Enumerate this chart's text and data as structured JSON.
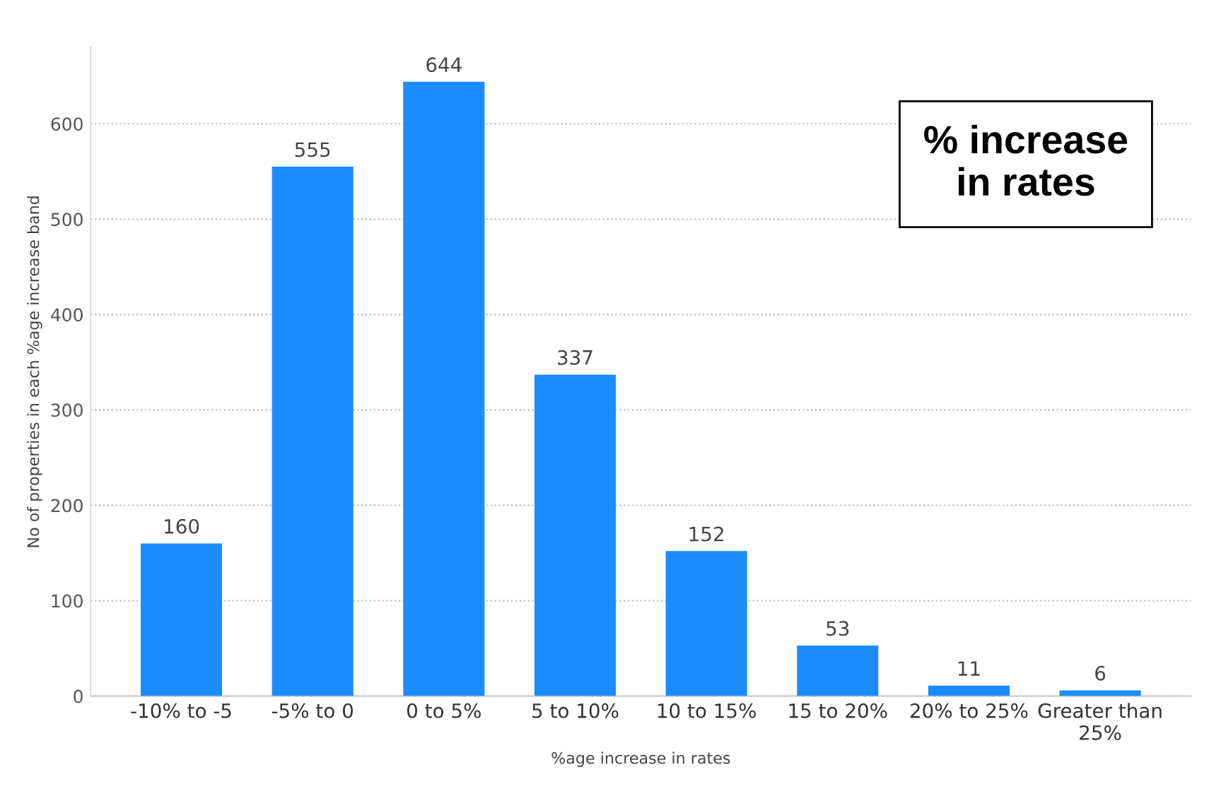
{
  "chart_data": {
    "type": "bar",
    "categories": [
      "-10% to -5",
      "-5% to 0",
      "0 to 5%",
      "5 to 10%",
      "10 to 15%",
      "15 to 20%",
      "20% to 25%",
      "Greater than\n25%"
    ],
    "values": [
      160,
      555,
      644,
      337,
      152,
      53,
      11,
      6
    ],
    "color": "#1a8cff",
    "xlabel": "%age increase in rates",
    "ylabel": "No of properties in each %age increase band",
    "annotations": [
      "% increase\nin rates"
    ],
    "ylim": [
      0,
      680
    ],
    "yticks": [
      0,
      100,
      200,
      300,
      400,
      500,
      600
    ],
    "grid": "y",
    "data_labels": true
  }
}
